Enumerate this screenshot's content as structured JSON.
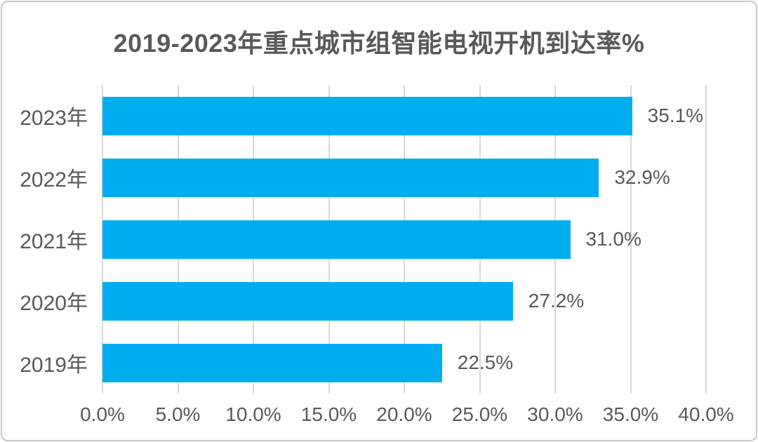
{
  "window": {
    "background": "#ffffff",
    "border_color": "#c9c9c9"
  },
  "chart_data": {
    "type": "bar",
    "orientation": "horizontal",
    "title": "2019-2023年重点城市组智能电视开机到达率%",
    "categories": [
      "2023年",
      "2022年",
      "2021年",
      "2020年",
      "2019年"
    ],
    "values": [
      35.1,
      32.9,
      31.0,
      27.2,
      22.5
    ],
    "value_labels": [
      "35.1%",
      "32.9%",
      "31.0%",
      "27.2%",
      "22.5%"
    ],
    "xlabel": "",
    "ylabel": "",
    "xlim": [
      0,
      40
    ],
    "x_ticks": [
      0,
      5,
      10,
      15,
      20,
      25,
      30,
      35,
      40
    ],
    "x_tick_labels": [
      "0.0%",
      "5.0%",
      "10.0%",
      "15.0%",
      "20.0%",
      "25.0%",
      "30.0%",
      "35.0%",
      "40.0%"
    ],
    "grid": "vertical-gridlines-on",
    "legend": "none",
    "bar_color": "#00AEEF",
    "text_color": "#595959",
    "title_color": "#595959",
    "gridline_color": "#D9D9D9"
  }
}
